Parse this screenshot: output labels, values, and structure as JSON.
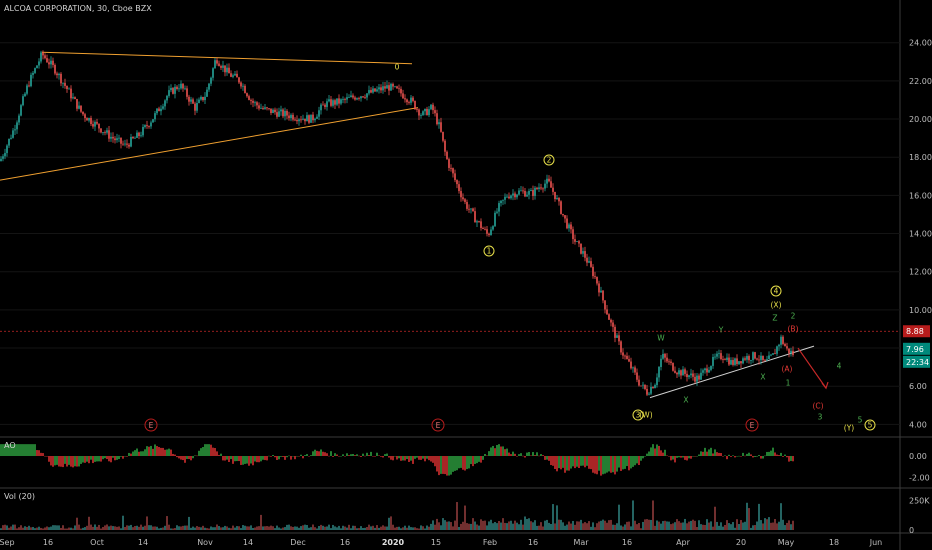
{
  "header": {
    "title": "ALCOA CORPORATION, 30, Cboe BZX",
    "ao_label": "AO",
    "vol_label": "Vol (20)"
  },
  "colors": {
    "up": "#26a69a",
    "down": "#ef5350",
    "trend": "#f0a030",
    "support": "#d0d0d0",
    "wave_yellow": "#e8e04a",
    "wave_green": "#4caf50",
    "wave_red": "#e53935",
    "price_line": "#c62828",
    "axis_bg": "#000000"
  },
  "price_axis": {
    "ticks": [
      "24.00",
      "22.00",
      "20.00",
      "18.00",
      "16.00",
      "14.00",
      "12.00",
      "10.00",
      "8.00",
      "6.00",
      "4.00"
    ],
    "last_price_label": "8.88",
    "current_label": "7.96",
    "countdown_label": "22:34"
  },
  "ao_axis": {
    "ticks": [
      "0.00",
      "-2.00"
    ]
  },
  "vol_axis": {
    "ticks": [
      "250K",
      "0"
    ]
  },
  "time_axis": {
    "labels": [
      "Sep",
      "16",
      "Oct",
      "14",
      "Nov",
      "14",
      "Dec",
      "16",
      "2020",
      "15",
      "Feb",
      "16",
      "Mar",
      "16",
      "Apr",
      "20",
      "May",
      "18",
      "Jun"
    ]
  },
  "earnings_label": "E",
  "wave_labels": {
    "zero": "0",
    "w1": "1",
    "w2": "2",
    "w3": "3",
    "w4": "4",
    "w5": "5",
    "W": "W",
    "X": "X",
    "Y": "Y",
    "Z": "Z",
    "XX": "(X)",
    "W_circ": "(W)",
    "A": "(A)",
    "B": "(B)",
    "C": "(C)",
    "Y_paren": "(Y)",
    "one": "1",
    "two": "2",
    "three": "3",
    "four": "4",
    "five": "5"
  },
  "chart_data": {
    "type": "candlestick",
    "title": "ALCOA CORPORATION, 30, Cboe BZX",
    "ylim": [
      3.6,
      25.4
    ],
    "x": [
      "Sep",
      "16",
      "Oct",
      "14",
      "Nov",
      "14",
      "Dec",
      "16",
      "2020",
      "15",
      "Feb",
      "16",
      "Mar",
      "16",
      "Apr",
      "20",
      "May",
      "18",
      "Jun"
    ],
    "price_path": [
      [
        0,
        17.8
      ],
      [
        14,
        19.5
      ],
      [
        28,
        21.8
      ],
      [
        42,
        23.4
      ],
      [
        55,
        22.6
      ],
      [
        68,
        21.5
      ],
      [
        82,
        20.3
      ],
      [
        96,
        19.7
      ],
      [
        110,
        19.1
      ],
      [
        125,
        18.6
      ],
      [
        140,
        19.2
      ],
      [
        155,
        20.2
      ],
      [
        168,
        21.3
      ],
      [
        180,
        21.8
      ],
      [
        195,
        20.6
      ],
      [
        206,
        21.3
      ],
      [
        216,
        23.2
      ],
      [
        228,
        22.4
      ],
      [
        240,
        22.0
      ],
      [
        252,
        20.9
      ],
      [
        264,
        20.5
      ],
      [
        280,
        20.3
      ],
      [
        298,
        20.1
      ],
      [
        312,
        20.0
      ],
      [
        325,
        20.8
      ],
      [
        340,
        20.9
      ],
      [
        356,
        21.2
      ],
      [
        372,
        21.4
      ],
      [
        388,
        21.7
      ],
      [
        400,
        21.4
      ],
      [
        412,
        20.9
      ],
      [
        422,
        20.2
      ],
      [
        432,
        20.6
      ],
      [
        440,
        19.5
      ],
      [
        446,
        18.0
      ],
      [
        455,
        16.8
      ],
      [
        465,
        15.6
      ],
      [
        475,
        14.8
      ],
      [
        488,
        13.9
      ],
      [
        498,
        15.3
      ],
      [
        507,
        16.0
      ],
      [
        520,
        16.2
      ],
      [
        532,
        16.1
      ],
      [
        540,
        16.5
      ],
      [
        548,
        16.7
      ],
      [
        555,
        16.0
      ],
      [
        565,
        14.7
      ],
      [
        575,
        13.6
      ],
      [
        585,
        12.8
      ],
      [
        596,
        11.6
      ],
      [
        605,
        10.2
      ],
      [
        612,
        9.1
      ],
      [
        622,
        7.8
      ],
      [
        632,
        6.9
      ],
      [
        640,
        6.1
      ],
      [
        647,
        5.7
      ],
      [
        655,
        6.2
      ],
      [
        662,
        7.6
      ],
      [
        669,
        7.2
      ],
      [
        677,
        6.8
      ],
      [
        688,
        6.6
      ],
      [
        698,
        6.4
      ],
      [
        708,
        7.0
      ],
      [
        716,
        7.5
      ],
      [
        724,
        7.6
      ],
      [
        732,
        7.2
      ],
      [
        745,
        7.5
      ],
      [
        756,
        7.6
      ],
      [
        765,
        7.2
      ],
      [
        773,
        7.6
      ],
      [
        781,
        8.5
      ],
      [
        787,
        7.9
      ],
      [
        793,
        7.7
      ]
    ],
    "trendlines": [
      {
        "name": "upper",
        "from": [
          42,
          23.5
        ],
        "to": [
          412,
          22.9
        ]
      },
      {
        "name": "lower",
        "from": [
          0,
          16.8
        ],
        "to": [
          418,
          20.6
        ]
      },
      {
        "name": "support",
        "from": [
          650,
          5.4
        ],
        "to": [
          814,
          8.1
        ]
      },
      {
        "name": "projection",
        "from": [
          798,
          8.0
        ],
        "to": [
          826,
          5.9
        ]
      }
    ],
    "ao_ylim": [
      -2.6,
      1.3
    ],
    "volume_ylim": [
      0,
      320000
    ]
  }
}
